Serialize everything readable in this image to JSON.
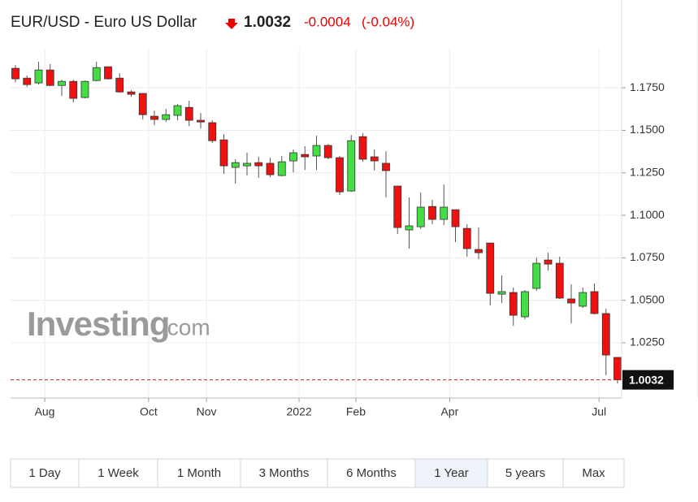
{
  "chart_data": {
    "type": "candlestick",
    "title": "EUR/USD - Euro US Dollar",
    "price": 1.0032,
    "change": -0.0004,
    "change_pct": "(-0.04%)",
    "watermark": [
      "Investing",
      ".com"
    ],
    "up_color": "#44dd44",
    "down_color": "#ee1111",
    "grid": true,
    "ylim": [
      0.9925,
      1.198
    ],
    "yticks": [
      {
        "value": 1.025,
        "label": "1.0250"
      },
      {
        "value": 1.05,
        "label": "1.0500"
      },
      {
        "value": 1.075,
        "label": "1.0750"
      },
      {
        "value": 1.1,
        "label": "1.1000"
      },
      {
        "value": 1.125,
        "label": "1.1250"
      },
      {
        "value": 1.15,
        "label": "1.1500"
      },
      {
        "value": 1.175,
        "label": "1.1750"
      }
    ],
    "xlim": [
      -0.42,
      52.35
    ],
    "xticks": [
      {
        "value": 2.53,
        "label": "Aug"
      },
      {
        "value": 11.5,
        "label": "Oct"
      },
      {
        "value": 16.5,
        "label": "Nov"
      },
      {
        "value": 24.5,
        "label": "2022"
      },
      {
        "value": 29.4,
        "label": "Feb"
      },
      {
        "value": 37.5,
        "label": "Apr"
      },
      {
        "value": 50.4,
        "label": "Jul"
      }
    ],
    "ohlc": [
      [
        1.1865,
        1.1884,
        1.1783,
        1.1803
      ],
      [
        1.1807,
        1.1822,
        1.1755,
        1.1769
      ],
      [
        1.1779,
        1.1903,
        1.1769,
        1.1855
      ],
      [
        1.1855,
        1.1889,
        1.176,
        1.1764
      ],
      [
        1.1764,
        1.1798,
        1.1702,
        1.1788
      ],
      [
        1.1788,
        1.1798,
        1.1664,
        1.1688
      ],
      [
        1.1693,
        1.1793,
        1.1688,
        1.1788
      ],
      [
        1.1793,
        1.1903,
        1.1788,
        1.1869
      ],
      [
        1.1874,
        1.1874,
        1.1798,
        1.1803
      ],
      [
        1.1807,
        1.1836,
        1.1721,
        1.1726
      ],
      [
        1.1726,
        1.1736,
        1.1697,
        1.1712
      ],
      [
        1.1717,
        1.1717,
        1.1564,
        1.1592
      ],
      [
        1.1583,
        1.1616,
        1.153,
        1.1564
      ],
      [
        1.1564,
        1.1626,
        1.1549,
        1.1592
      ],
      [
        1.1588,
        1.1654,
        1.1559,
        1.1645
      ],
      [
        1.1635,
        1.1674,
        1.1525,
        1.1559
      ],
      [
        1.1559,
        1.1602,
        1.1511,
        1.1549
      ],
      [
        1.1545,
        1.1559,
        1.1425,
        1.1439
      ],
      [
        1.1444,
        1.1478,
        1.1244,
        1.1291
      ],
      [
        1.1282,
        1.133,
        1.1186,
        1.131
      ],
      [
        1.1291,
        1.1368,
        1.1234,
        1.1306
      ],
      [
        1.131,
        1.1344,
        1.122,
        1.1291
      ],
      [
        1.1306,
        1.1339,
        1.1224,
        1.1239
      ],
      [
        1.1234,
        1.1349,
        1.1229,
        1.1315
      ],
      [
        1.132,
        1.1387,
        1.1253,
        1.1368
      ],
      [
        1.1358,
        1.1406,
        1.1267,
        1.1344
      ],
      [
        1.1349,
        1.1468,
        1.1267,
        1.1411
      ],
      [
        1.1411,
        1.142,
        1.133,
        1.1339
      ],
      [
        1.1339,
        1.1349,
        1.1119,
        1.1138
      ],
      [
        1.1143,
        1.1473,
        1.1138,
        1.1439
      ],
      [
        1.1463,
        1.1482,
        1.1315,
        1.133
      ],
      [
        1.1344,
        1.1387,
        1.1263,
        1.132
      ],
      [
        1.1306,
        1.1377,
        1.1105,
        1.1263
      ],
      [
        1.1172,
        1.1172,
        1.089,
        1.0928
      ],
      [
        1.0914,
        1.1105,
        1.0804,
        1.0938
      ],
      [
        1.0933,
        1.1134,
        1.0919,
        1.1048
      ],
      [
        1.1052,
        1.1091,
        1.0947,
        1.0976
      ],
      [
        1.0976,
        1.1181,
        1.0943,
        1.1048
      ],
      [
        1.1033,
        1.1033,
        1.0842,
        1.0933
      ],
      [
        1.0923,
        1.0947,
        1.0756,
        1.0804
      ],
      [
        1.0799,
        1.0928,
        1.0742,
        1.078
      ],
      [
        1.0837,
        1.0837,
        1.047,
        1.0541
      ],
      [
        1.0536,
        1.0646,
        1.0484,
        1.0551
      ],
      [
        1.0546,
        1.0575,
        1.035,
        1.0412
      ],
      [
        1.0403,
        1.056,
        1.0388,
        1.0551
      ],
      [
        1.057,
        1.0751,
        1.0556,
        1.0718
      ],
      [
        1.0737,
        1.078,
        1.0675,
        1.0713
      ],
      [
        1.0718,
        1.0756,
        1.0508,
        1.0513
      ],
      [
        1.0508,
        1.0594,
        1.0364,
        1.0484
      ],
      [
        1.0465,
        1.0575,
        1.0455,
        1.0546
      ],
      [
        1.0551,
        1.0599,
        1.0417,
        1.0422
      ],
      [
        1.0422,
        1.045,
        1.0059,
        1.0178
      ],
      [
        1.0164,
        1.0164,
        1.0011,
        1.0032
      ]
    ],
    "range_buttons": [
      "1 Day",
      "1 Week",
      "1 Month",
      "3 Months",
      "6 Months",
      "1 Year",
      "5 years",
      "Max"
    ],
    "selected": "1 Year"
  }
}
